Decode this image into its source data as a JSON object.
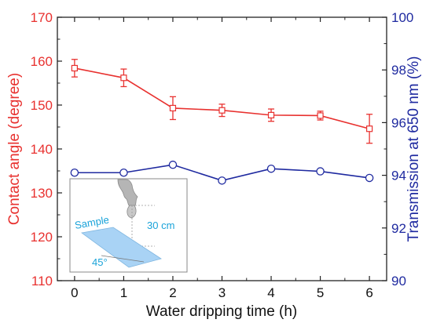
{
  "chart_data": {
    "type": "line",
    "title": "",
    "xlabel": "Water dripping time (h)",
    "ylabel_left": "Contact angle (degree)",
    "ylabel_right": "Transmission at 650 nm (%)",
    "x": [
      0,
      1,
      2,
      3,
      4,
      5,
      6
    ],
    "x_ticks": [
      "0",
      "1",
      "2",
      "3",
      "4",
      "5",
      "6"
    ],
    "xlim": [
      -0.35,
      6.35
    ],
    "ylim_left": [
      110,
      170
    ],
    "ylim_right": [
      90,
      100
    ],
    "y_ticks_left": [
      "110",
      "120",
      "130",
      "140",
      "150",
      "160",
      "170"
    ],
    "y_ticks_right": [
      "90",
      "92",
      "94",
      "96",
      "98",
      "100"
    ],
    "series": [
      {
        "axis": "left",
        "color": "#e8312f",
        "marker": "square-open",
        "values": [
          158.4,
          156.2,
          149.3,
          148.8,
          147.7,
          147.6,
          144.6
        ],
        "errors": [
          2.0,
          2.0,
          2.6,
          1.4,
          1.4,
          1.0,
          3.3
        ]
      },
      {
        "axis": "right",
        "color": "#1f2aa0",
        "marker": "circle-open",
        "values": [
          94.1,
          94.1,
          94.4,
          93.8,
          94.25,
          94.15,
          93.9
        ]
      }
    ],
    "grid": false,
    "legend": "none"
  },
  "inset": {
    "sample_label": "Sample",
    "height_label": "30 cm",
    "angle_label": "45°"
  },
  "colors": {
    "left_axis": "#e8312f",
    "right_axis": "#1f2aa0",
    "inset_text": "#1aa3d9",
    "sample_fill": "#a9d3f5"
  }
}
